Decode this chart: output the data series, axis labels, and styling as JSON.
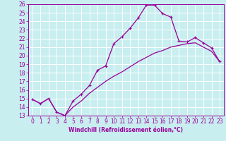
{
  "xlabel": "Windchill (Refroidissement éolien,°C)",
  "bg_color": "#c8eef0",
  "line_color": "#990099",
  "grid_color": "#ffffff",
  "xlim": [
    -0.5,
    23.5
  ],
  "ylim": [
    13,
    26
  ],
  "xticks": [
    0,
    1,
    2,
    3,
    4,
    5,
    6,
    7,
    8,
    9,
    10,
    11,
    12,
    13,
    14,
    15,
    16,
    17,
    18,
    19,
    20,
    21,
    22,
    23
  ],
  "yticks": [
    13,
    14,
    15,
    16,
    17,
    18,
    19,
    20,
    21,
    22,
    23,
    24,
    25,
    26
  ],
  "line1_x": [
    0,
    1,
    2,
    3,
    4,
    5,
    6,
    7,
    8,
    9,
    10,
    11,
    12,
    13,
    14,
    15,
    16,
    17,
    18,
    19,
    20,
    21,
    22,
    23
  ],
  "line1_y": [
    14.9,
    14.4,
    15.0,
    13.4,
    13.0,
    14.7,
    15.5,
    16.5,
    18.3,
    18.8,
    21.4,
    22.2,
    23.2,
    24.4,
    25.9,
    25.9,
    24.9,
    24.5,
    21.7,
    21.6,
    22.1,
    21.5,
    20.9,
    19.3
  ],
  "line2_x": [
    0,
    1,
    2,
    3,
    4,
    5,
    6,
    7,
    8,
    9,
    10,
    11,
    12,
    13,
    14,
    15,
    16,
    17,
    18,
    19,
    20,
    21,
    22,
    23
  ],
  "line2_y": [
    14.9,
    14.4,
    15.0,
    13.4,
    13.0,
    14.0,
    14.7,
    15.6,
    16.3,
    17.0,
    17.6,
    18.1,
    18.7,
    19.3,
    19.8,
    20.3,
    20.6,
    21.0,
    21.2,
    21.4,
    21.5,
    21.0,
    20.5,
    19.3
  ],
  "tick_fontsize": 5.5,
  "xlabel_fontsize": 5.5,
  "marker_size": 3,
  "linewidth": 0.9
}
